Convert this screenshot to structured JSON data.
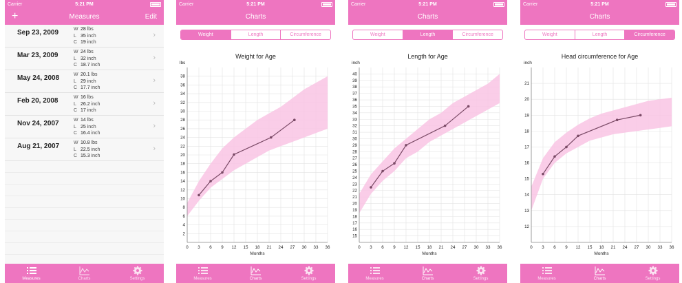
{
  "status": {
    "carrier": "Carrier",
    "time": "5:21 PM"
  },
  "tabs": [
    {
      "label": "Measures",
      "icon": "list-icon"
    },
    {
      "label": "Charts",
      "icon": "chart-icon"
    },
    {
      "label": "Settings",
      "icon": "gear-icon"
    }
  ],
  "measures": {
    "title": "Measures",
    "add_label": "+",
    "edit_label": "Edit",
    "rows": [
      {
        "date": "Sep 23, 2009",
        "w": "28",
        "l": "35",
        "c": "19"
      },
      {
        "date": "Mar 23, 2009",
        "w": "24",
        "l": "32",
        "c": "18.7"
      },
      {
        "date": "May 24, 2008",
        "w": "20.1",
        "l": "29",
        "c": "17.7"
      },
      {
        "date": "Feb 20, 2008",
        "w": "16",
        "l": "26.2",
        "c": "17"
      },
      {
        "date": "Nov 24, 2007",
        "w": "14",
        "l": "25",
        "c": "16.4"
      },
      {
        "date": "Aug 21, 2007",
        "w": "10.8",
        "l": "22.5",
        "c": "15.3"
      }
    ],
    "w_key": "W",
    "l_key": "L",
    "c_key": "C",
    "w_unit": "lbs",
    "l_unit": "inch",
    "c_unit": "inch"
  },
  "charts_screen": {
    "title": "Charts",
    "segments": [
      "Weight",
      "Length",
      "Circumference"
    ]
  },
  "colors": {
    "accent": "#ee75c0",
    "band": "#f9c4e4",
    "line": "#7a4a66"
  },
  "chart_data": [
    {
      "type": "line",
      "title": "Weight for Age",
      "xlabel": "Months",
      "ylabel": "lbs",
      "xlim": [
        0,
        36
      ],
      "ylim": [
        0,
        40
      ],
      "xticks": [
        0,
        3,
        6,
        9,
        12,
        15,
        18,
        21,
        24,
        27,
        30,
        33,
        36
      ],
      "yticks": [
        2,
        4,
        6,
        8,
        10,
        12,
        14,
        16,
        18,
        20,
        22,
        24,
        26,
        28,
        30,
        32,
        34,
        36,
        38
      ],
      "series": [
        {
          "x": [
            3,
            6,
            9,
            12,
            21.5,
            27.5
          ],
          "y": [
            10.8,
            14,
            16,
            20.1,
            24,
            28
          ]
        }
      ],
      "band": {
        "x": [
          0,
          3,
          6,
          9,
          12,
          15,
          18,
          21,
          24,
          27,
          30,
          33,
          36
        ],
        "lower": [
          6,
          9.5,
          12.5,
          14.5,
          16.5,
          18,
          19.5,
          21,
          22,
          23,
          24,
          25,
          26
        ],
        "upper": [
          9,
          14,
          18,
          21.5,
          24,
          26,
          28,
          29.5,
          31,
          33,
          35,
          36.5,
          38
        ]
      },
      "grid": true
    },
    {
      "type": "line",
      "title": "Length for Age",
      "xlabel": "Months",
      "ylabel": "inch",
      "xlim": [
        0,
        36
      ],
      "ylim": [
        14,
        41
      ],
      "xticks": [
        0,
        3,
        6,
        9,
        12,
        15,
        18,
        21,
        24,
        27,
        30,
        33,
        36
      ],
      "yticks": [
        15,
        16,
        17,
        18,
        19,
        20,
        21,
        22,
        23,
        24,
        25,
        26,
        27,
        28,
        29,
        30,
        31,
        32,
        33,
        34,
        35,
        36,
        37,
        38,
        39,
        40
      ],
      "series": [
        {
          "x": [
            3,
            6,
            9,
            12,
            22,
            28
          ],
          "y": [
            22.5,
            25,
            26.2,
            29,
            32,
            35
          ]
        }
      ],
      "band": {
        "x": [
          0,
          3,
          6,
          9,
          12,
          15,
          18,
          21,
          24,
          27,
          30,
          33,
          36
        ],
        "lower": [
          18.5,
          21.5,
          23.5,
          25,
          27,
          28,
          29.5,
          30.5,
          31.5,
          32.5,
          33.5,
          34.5,
          35.5
        ],
        "upper": [
          21.5,
          24.5,
          26.5,
          28.5,
          30,
          31.5,
          33,
          34,
          35.5,
          36.5,
          37.5,
          38.5,
          40
        ]
      },
      "grid": true
    },
    {
      "type": "line",
      "title": "Head circumference for Age",
      "xlabel": "Months",
      "ylabel": "inch",
      "xlim": [
        0,
        36
      ],
      "ylim": [
        11,
        22
      ],
      "xticks": [
        0,
        3,
        6,
        9,
        12,
        15,
        18,
        21,
        24,
        27,
        30,
        33,
        36
      ],
      "yticks": [
        12,
        13,
        14,
        15,
        16,
        17,
        18,
        19,
        20,
        21
      ],
      "series": [
        {
          "x": [
            3,
            6,
            9,
            12,
            22,
            28
          ],
          "y": [
            15.3,
            16.4,
            17,
            17.7,
            18.7,
            19
          ]
        }
      ],
      "band": {
        "x": [
          0,
          3,
          6,
          9,
          12,
          15,
          18,
          21,
          24,
          27,
          30,
          33,
          36
        ],
        "lower": [
          13,
          15,
          16,
          16.6,
          17,
          17.4,
          17.6,
          17.8,
          17.9,
          18,
          18.1,
          18.2,
          18.3
        ],
        "upper": [
          14.5,
          16.3,
          17.3,
          17.9,
          18.4,
          18.8,
          19.1,
          19.3,
          19.5,
          19.7,
          19.9,
          20,
          20.1
        ]
      },
      "grid": true
    }
  ]
}
